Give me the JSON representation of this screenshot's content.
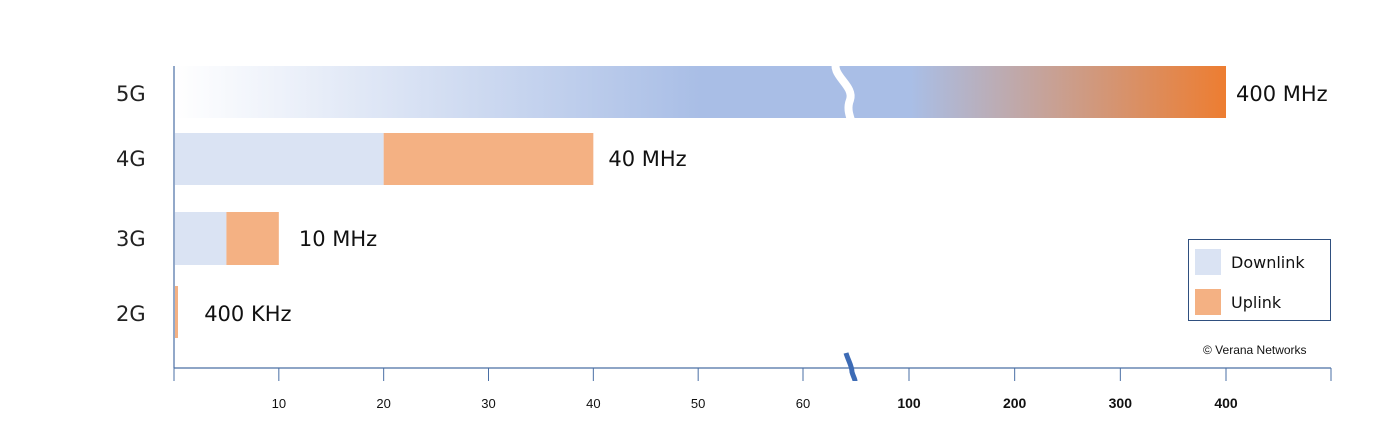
{
  "chart_data": {
    "type": "bar",
    "orientation": "horizontal",
    "stacked": true,
    "categories": [
      "5G",
      "4G",
      "3G",
      "2G"
    ],
    "series": [
      {
        "name": "Downlink",
        "values": [
          200,
          20,
          5,
          0.2
        ]
      },
      {
        "name": "Uplink",
        "values": [
          200,
          20,
          5,
          0.2
        ]
      }
    ],
    "data_labels": [
      "400 MHz",
      "40 MHz",
      "10 MHz",
      "400 KHz"
    ],
    "x_ticks": [
      {
        "label": "10",
        "value": 10,
        "bold": false
      },
      {
        "label": "20",
        "value": 20,
        "bold": false
      },
      {
        "label": "30",
        "value": 30,
        "bold": false
      },
      {
        "label": "40",
        "value": 40,
        "bold": false
      },
      {
        "label": "50",
        "value": 50,
        "bold": false
      },
      {
        "label": "60",
        "value": 60,
        "bold": false
      },
      {
        "label": "100",
        "value": 100,
        "bold": true
      },
      {
        "label": "200",
        "value": 200,
        "bold": true
      },
      {
        "label": "300",
        "value": 300,
        "bold": true
      },
      {
        "label": "400",
        "value": 400,
        "bold": true
      }
    ],
    "x_axis_break": true,
    "xlim": [
      0,
      500
    ],
    "grid": false,
    "legend_position": "bottom-right",
    "title": "",
    "xlabel": "",
    "ylabel": "",
    "colors": {
      "downlink": "#dae3f3",
      "uplink": "#f4b183",
      "gradient_light": "#ffffff",
      "gradient_mid": "#a9bee6",
      "gradient_end": "#ed7d31",
      "axis": "#4a6fa5",
      "break_mark": "#3d6bb5"
    }
  },
  "legend": {
    "items": [
      {
        "label": "Downlink",
        "color": "#dae3f3"
      },
      {
        "label": "Uplink",
        "color": "#f4b183"
      }
    ]
  },
  "copyright": "© Verana Networks"
}
